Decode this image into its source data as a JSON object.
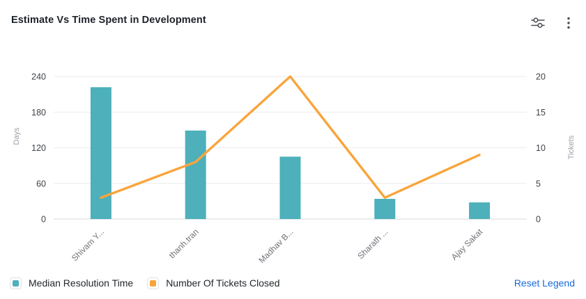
{
  "header": {
    "title": "Estimate Vs Time Spent in Development",
    "settings_icon": "sliders-icon",
    "menu_icon": "kebab-menu-icon"
  },
  "chart_data": {
    "type": "bar",
    "subtype": "combo-bar-line-dual-axis",
    "categories": [
      "Shivam Y...",
      "thanh.tran",
      "Madhav B...",
      "Sharath ...",
      "Ajay Sakat"
    ],
    "series": [
      {
        "name": "Median Resolution Time",
        "type": "bar",
        "axis": "left",
        "color": "#4DB0BB",
        "values": [
          222,
          149,
          105,
          34,
          28
        ]
      },
      {
        "name": "Number Of Tickets Closed",
        "type": "line",
        "axis": "right",
        "color": "#F9A43B",
        "values": [
          3,
          8,
          20,
          3,
          9
        ]
      }
    ],
    "left_axis": {
      "label": "Days",
      "ticks": [
        0,
        60,
        120,
        180,
        240
      ],
      "max": 240
    },
    "right_axis": {
      "label": "Tickets",
      "ticks": [
        0,
        5,
        10,
        15,
        20
      ],
      "max": 20
    },
    "grid": true,
    "legend_position": "bottom",
    "x_label_rotation": -45
  },
  "legend": {
    "reset_label": "Reset Legend"
  },
  "colors": {
    "bar": "#4DB0BB",
    "line": "#F9A43B",
    "link": "#1868DB",
    "gridline": "#ececec",
    "title_text": "#1d2228"
  }
}
